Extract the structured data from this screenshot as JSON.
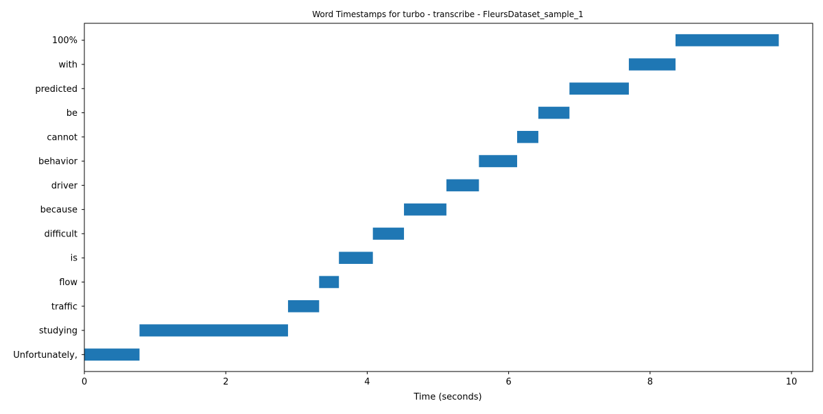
{
  "chart_data": {
    "type": "bar",
    "orientation": "horizontal-timeline",
    "title": "Word Timestamps for turbo - transcribe - FleursDataset_sample_1",
    "xlabel": "Time (seconds)",
    "ylabel": "",
    "xlim": [
      0,
      10.3
    ],
    "xticks": [
      0,
      2,
      4,
      6,
      8,
      10
    ],
    "grid": false,
    "legend": "none",
    "bar_color": "#1f77b4",
    "words": [
      {
        "word": "Unfortunately,",
        "start": 0.0,
        "end": 0.78
      },
      {
        "word": "studying",
        "start": 0.78,
        "end": 2.88
      },
      {
        "word": "traffic",
        "start": 2.88,
        "end": 3.32
      },
      {
        "word": "flow",
        "start": 3.32,
        "end": 3.6
      },
      {
        "word": "is",
        "start": 3.6,
        "end": 4.08
      },
      {
        "word": "difficult",
        "start": 4.08,
        "end": 4.52
      },
      {
        "word": "because",
        "start": 4.52,
        "end": 5.12
      },
      {
        "word": "driver",
        "start": 5.12,
        "end": 5.58
      },
      {
        "word": "behavior",
        "start": 5.58,
        "end": 6.12
      },
      {
        "word": "cannot",
        "start": 6.12,
        "end": 6.42
      },
      {
        "word": "be",
        "start": 6.42,
        "end": 6.86
      },
      {
        "word": "predicted",
        "start": 6.86,
        "end": 7.7
      },
      {
        "word": "with",
        "start": 7.7,
        "end": 8.36
      },
      {
        "word": "100%",
        "start": 8.36,
        "end": 9.82
      }
    ]
  }
}
